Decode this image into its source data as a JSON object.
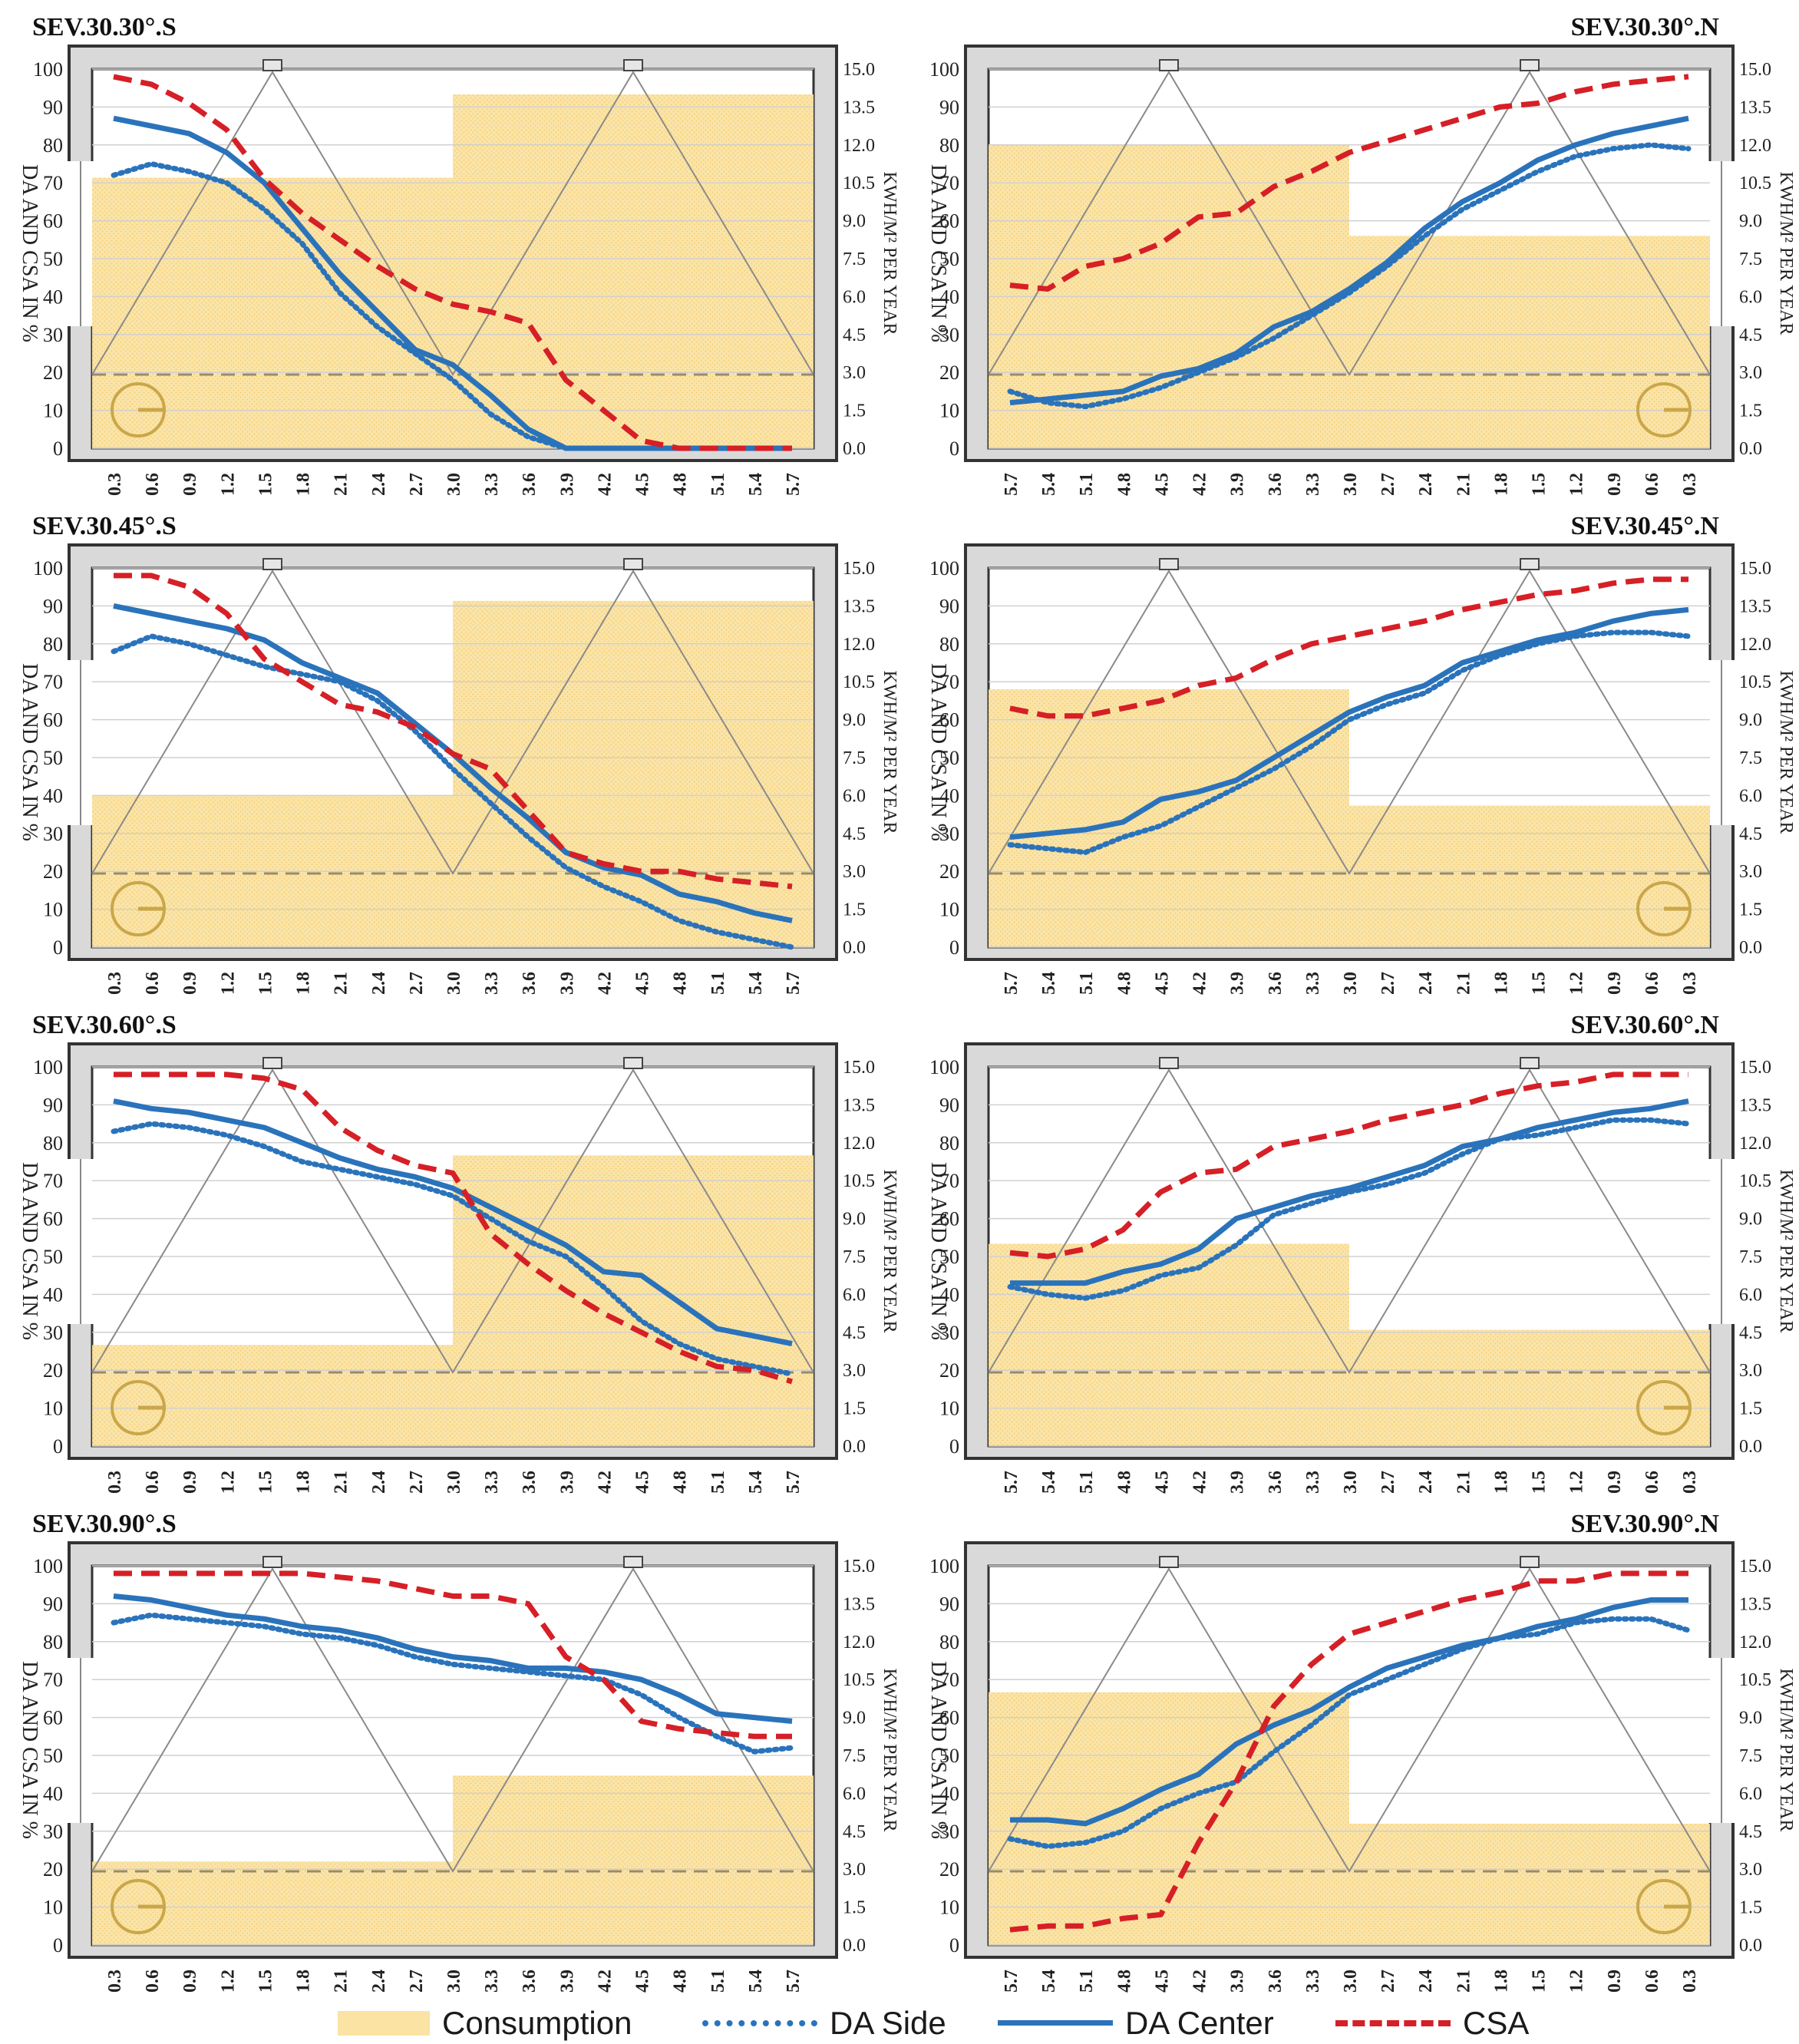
{
  "colors": {
    "consumption": "#f7d57a",
    "da_side": "#2a73bb",
    "da_center": "#2a73bb",
    "csa": "#d61f26",
    "frame": "#d9d9d9",
    "frame_edge": "#333333"
  },
  "left_axis_label": "DA AND CSA IN %",
  "right_axis_label": "KWH/M² PER YEAR",
  "legend": {
    "consumption": "Consumption",
    "da_side": "DA Side",
    "da_center": "DA Center",
    "csa": "CSA"
  },
  "chart_data": [
    {
      "type": "line",
      "title": "SEV.30.30°.S",
      "orientation": "S",
      "x": [
        "0.3",
        "0.6",
        "0.9",
        "1.2",
        "1.5",
        "1.8",
        "2.1",
        "2.4",
        "2.7",
        "3.0",
        "3.3",
        "3.6",
        "3.9",
        "4.2",
        "4.5",
        "4.8",
        "5.1",
        "5.4",
        "5.7"
      ],
      "ylim": [
        0,
        100
      ],
      "yticks": [
        0,
        10,
        20,
        30,
        40,
        50,
        60,
        70,
        80,
        90,
        100
      ],
      "y2lim": [
        0,
        15
      ],
      "y2ticks": [
        "0.0",
        "1.5",
        "3.0",
        "4.5",
        "6.0",
        "7.5",
        "9.0",
        "10.5",
        "12.0",
        "13.5",
        "15.0"
      ],
      "consumption": [
        10.7,
        14.0
      ],
      "series": [
        {
          "name": "DA Side",
          "values": [
            72,
            75,
            73,
            70,
            63,
            54,
            41,
            32,
            25,
            18,
            9,
            3,
            0,
            0,
            0,
            0,
            0,
            0,
            0
          ]
        },
        {
          "name": "DA Center",
          "values": [
            87,
            85,
            83,
            78,
            70,
            58,
            46,
            36,
            26,
            22,
            14,
            5,
            0,
            0,
            0,
            0,
            0,
            0,
            0
          ]
        },
        {
          "name": "CSA",
          "values": [
            98,
            96,
            91,
            84,
            71,
            62,
            55,
            48,
            42,
            38,
            36,
            33,
            18,
            10,
            2,
            0,
            0,
            0,
            0
          ]
        }
      ]
    },
    {
      "type": "line",
      "title": "SEV.30.30°.N",
      "orientation": "N",
      "x": [
        "5.7",
        "5.4",
        "5.1",
        "4.8",
        "4.5",
        "4.2",
        "3.9",
        "3.6",
        "3.3",
        "3.0",
        "2.7",
        "2.4",
        "2.1",
        "1.8",
        "1.5",
        "1.2",
        "0.9",
        "0.6",
        "0.3"
      ],
      "ylim": [
        0,
        100
      ],
      "yticks": [
        0,
        10,
        20,
        30,
        40,
        50,
        60,
        70,
        80,
        90,
        100
      ],
      "y2lim": [
        0,
        15
      ],
      "y2ticks": [
        "0.0",
        "1.5",
        "3.0",
        "4.5",
        "6.0",
        "7.5",
        "9.0",
        "10.5",
        "12.0",
        "13.5",
        "15.0"
      ],
      "consumption": [
        12.0,
        8.4
      ],
      "series": [
        {
          "name": "DA Side",
          "values": [
            15,
            12,
            11,
            13,
            16,
            20,
            24,
            29,
            35,
            41,
            48,
            56,
            63,
            68,
            73,
            77,
            79,
            80,
            79
          ]
        },
        {
          "name": "DA Center",
          "values": [
            12,
            13,
            14,
            15,
            19,
            21,
            25,
            32,
            36,
            42,
            49,
            58,
            65,
            70,
            76,
            80,
            83,
            85,
            87
          ]
        },
        {
          "name": "CSA",
          "values": [
            43,
            42,
            48,
            50,
            54,
            61,
            62,
            69,
            73,
            78,
            81,
            84,
            87,
            90,
            91,
            94,
            96,
            97,
            98
          ]
        }
      ]
    },
    {
      "type": "line",
      "title": "SEV.30.45°.S",
      "orientation": "S",
      "x": [
        "0.3",
        "0.6",
        "0.9",
        "1.2",
        "1.5",
        "1.8",
        "2.1",
        "2.4",
        "2.7",
        "3.0",
        "3.3",
        "3.6",
        "3.9",
        "4.2",
        "4.5",
        "4.8",
        "5.1",
        "5.4",
        "5.7"
      ],
      "ylim": [
        0,
        100
      ],
      "yticks": [
        0,
        10,
        20,
        30,
        40,
        50,
        60,
        70,
        80,
        90,
        100
      ],
      "y2lim": [
        0,
        15
      ],
      "y2ticks": [
        "0.0",
        "1.5",
        "3.0",
        "4.5",
        "6.0",
        "7.5",
        "9.0",
        "10.5",
        "12.0",
        "13.5",
        "15.0"
      ],
      "consumption": [
        6.0,
        13.7
      ],
      "series": [
        {
          "name": "DA Side",
          "values": [
            78,
            82,
            80,
            77,
            74,
            72,
            70,
            65,
            57,
            47,
            38,
            29,
            21,
            16,
            12,
            7,
            4,
            2,
            0
          ]
        },
        {
          "name": "DA Center",
          "values": [
            90,
            88,
            86,
            84,
            81,
            75,
            71,
            67,
            59,
            51,
            42,
            34,
            25,
            21,
            19,
            14,
            12,
            9,
            7
          ]
        },
        {
          "name": "CSA",
          "values": [
            98,
            98,
            95,
            88,
            76,
            70,
            64,
            62,
            58,
            51,
            47,
            36,
            25,
            22,
            20,
            20,
            18,
            17,
            16
          ]
        }
      ]
    },
    {
      "type": "line",
      "title": "SEV.30.45°.N",
      "orientation": "N",
      "x": [
        "5.7",
        "5.4",
        "5.1",
        "4.8",
        "4.5",
        "4.2",
        "3.9",
        "3.6",
        "3.3",
        "3.0",
        "2.7",
        "2.4",
        "2.1",
        "1.8",
        "1.5",
        "1.2",
        "0.9",
        "0.6",
        "0.3"
      ],
      "ylim": [
        0,
        100
      ],
      "yticks": [
        0,
        10,
        20,
        30,
        40,
        50,
        60,
        70,
        80,
        90,
        100
      ],
      "y2lim": [
        0,
        15
      ],
      "y2ticks": [
        "0.0",
        "1.5",
        "3.0",
        "4.5",
        "6.0",
        "7.5",
        "9.0",
        "10.5",
        "12.0",
        "13.5",
        "15.0"
      ],
      "consumption": [
        10.2,
        5.6
      ],
      "series": [
        {
          "name": "DA Side",
          "values": [
            27,
            26,
            25,
            29,
            32,
            37,
            42,
            47,
            53,
            60,
            64,
            67,
            73,
            77,
            80,
            82,
            83,
            83,
            82
          ]
        },
        {
          "name": "DA Center",
          "values": [
            29,
            30,
            31,
            33,
            39,
            41,
            44,
            50,
            56,
            62,
            66,
            69,
            75,
            78,
            81,
            83,
            86,
            88,
            89
          ]
        },
        {
          "name": "CSA",
          "values": [
            63,
            61,
            61,
            63,
            65,
            69,
            71,
            76,
            80,
            82,
            84,
            86,
            89,
            91,
            93,
            94,
            96,
            97,
            97
          ]
        }
      ]
    },
    {
      "type": "line",
      "title": "SEV.30.60°.S",
      "orientation": "S",
      "x": [
        "0.3",
        "0.6",
        "0.9",
        "1.2",
        "1.5",
        "1.8",
        "2.1",
        "2.4",
        "2.7",
        "3.0",
        "3.3",
        "3.6",
        "3.9",
        "4.2",
        "4.5",
        "4.8",
        "5.1",
        "5.4",
        "5.7"
      ],
      "ylim": [
        0,
        100
      ],
      "yticks": [
        0,
        10,
        20,
        30,
        40,
        50,
        60,
        70,
        80,
        90,
        100
      ],
      "y2lim": [
        0,
        15
      ],
      "y2ticks": [
        "0.0",
        "1.5",
        "3.0",
        "4.5",
        "6.0",
        "7.5",
        "9.0",
        "10.5",
        "12.0",
        "13.5",
        "15.0"
      ],
      "consumption": [
        4.0,
        11.5
      ],
      "series": [
        {
          "name": "DA Side",
          "values": [
            83,
            85,
            84,
            82,
            79,
            75,
            73,
            71,
            69,
            66,
            60,
            54,
            50,
            42,
            33,
            27,
            23,
            21,
            19
          ]
        },
        {
          "name": "DA Center",
          "values": [
            91,
            89,
            88,
            86,
            84,
            80,
            76,
            73,
            71,
            68,
            63,
            58,
            53,
            46,
            45,
            38,
            31,
            29,
            27
          ]
        },
        {
          "name": "CSA",
          "values": [
            98,
            98,
            98,
            98,
            97,
            94,
            84,
            78,
            74,
            72,
            56,
            48,
            41,
            35,
            30,
            25,
            21,
            20,
            17
          ]
        }
      ]
    },
    {
      "type": "line",
      "title": "SEV.30.60°.N",
      "orientation": "N",
      "x": [
        "5.7",
        "5.4",
        "5.1",
        "4.8",
        "4.5",
        "4.2",
        "3.9",
        "3.6",
        "3.3",
        "3.0",
        "2.7",
        "2.4",
        "2.1",
        "1.8",
        "1.5",
        "1.2",
        "0.9",
        "0.6",
        "0.3"
      ],
      "ylim": [
        0,
        100
      ],
      "yticks": [
        0,
        10,
        20,
        30,
        40,
        50,
        60,
        70,
        80,
        90,
        100
      ],
      "y2lim": [
        0,
        15
      ],
      "y2ticks": [
        "0.0",
        "1.5",
        "3.0",
        "4.5",
        "6.0",
        "7.5",
        "9.0",
        "10.5",
        "12.0",
        "13.5",
        "15.0"
      ],
      "consumption": [
        8.0,
        4.6
      ],
      "series": [
        {
          "name": "DA Side",
          "values": [
            42,
            40,
            39,
            41,
            45,
            47,
            53,
            61,
            64,
            67,
            69,
            72,
            77,
            81,
            82,
            84,
            86,
            86,
            85
          ]
        },
        {
          "name": "DA Center",
          "values": [
            43,
            43,
            43,
            46,
            48,
            52,
            60,
            63,
            66,
            68,
            71,
            74,
            79,
            81,
            84,
            86,
            88,
            89,
            91
          ]
        },
        {
          "name": "CSA",
          "values": [
            51,
            50,
            52,
            57,
            67,
            72,
            73,
            79,
            81,
            83,
            86,
            88,
            90,
            93,
            95,
            96,
            98,
            98,
            98
          ]
        }
      ]
    },
    {
      "type": "line",
      "title": "SEV.30.90°.S",
      "orientation": "S",
      "x": [
        "0.3",
        "0.6",
        "0.9",
        "1.2",
        "1.5",
        "1.8",
        "2.1",
        "2.4",
        "2.7",
        "3.0",
        "3.3",
        "3.6",
        "3.9",
        "4.2",
        "4.5",
        "4.8",
        "5.1",
        "5.4",
        "5.7"
      ],
      "ylim": [
        0,
        100
      ],
      "yticks": [
        0,
        10,
        20,
        30,
        40,
        50,
        60,
        70,
        80,
        90,
        100
      ],
      "y2lim": [
        0,
        15
      ],
      "y2ticks": [
        "0.0",
        "1.5",
        "3.0",
        "4.5",
        "6.0",
        "7.5",
        "9.0",
        "10.5",
        "12.0",
        "13.5",
        "15.0"
      ],
      "consumption": [
        3.3,
        6.7
      ],
      "series": [
        {
          "name": "DA Side",
          "values": [
            85,
            87,
            86,
            85,
            84,
            82,
            81,
            79,
            76,
            74,
            73,
            72,
            71,
            70,
            66,
            60,
            55,
            51,
            52
          ]
        },
        {
          "name": "DA Center",
          "values": [
            92,
            91,
            89,
            87,
            86,
            84,
            83,
            81,
            78,
            76,
            75,
            73,
            73,
            72,
            70,
            66,
            61,
            60,
            59
          ]
        },
        {
          "name": "CSA",
          "values": [
            98,
            98,
            98,
            98,
            98,
            98,
            97,
            96,
            94,
            92,
            92,
            90,
            76,
            70,
            59,
            57,
            56,
            55,
            55
          ]
        }
      ]
    },
    {
      "type": "line",
      "title": "SEV.30.90°.N",
      "orientation": "N",
      "x": [
        "5.7",
        "5.4",
        "5.1",
        "4.8",
        "4.5",
        "4.2",
        "3.9",
        "3.6",
        "3.3",
        "3.0",
        "2.7",
        "2.4",
        "2.1",
        "1.8",
        "1.5",
        "1.2",
        "0.9",
        "0.6",
        "0.3"
      ],
      "ylim": [
        0,
        100
      ],
      "yticks": [
        0,
        10,
        20,
        30,
        40,
        50,
        60,
        70,
        80,
        90,
        100
      ],
      "y2lim": [
        0,
        15
      ],
      "y2ticks": [
        "0.0",
        "1.5",
        "3.0",
        "4.5",
        "6.0",
        "7.5",
        "9.0",
        "10.5",
        "12.0",
        "13.5",
        "15.0"
      ],
      "consumption": [
        10.0,
        4.8
      ],
      "series": [
        {
          "name": "DA Side",
          "values": [
            28,
            26,
            27,
            30,
            36,
            40,
            43,
            51,
            58,
            66,
            70,
            74,
            78,
            81,
            82,
            85,
            86,
            86,
            83
          ]
        },
        {
          "name": "DA Center",
          "values": [
            33,
            33,
            32,
            36,
            41,
            45,
            53,
            58,
            62,
            68,
            73,
            76,
            79,
            81,
            84,
            86,
            89,
            91,
            91
          ]
        },
        {
          "name": "CSA",
          "values": [
            4,
            5,
            5,
            7,
            8,
            27,
            43,
            63,
            74,
            82,
            85,
            88,
            91,
            93,
            96,
            96,
            98,
            98,
            98
          ]
        }
      ]
    }
  ]
}
